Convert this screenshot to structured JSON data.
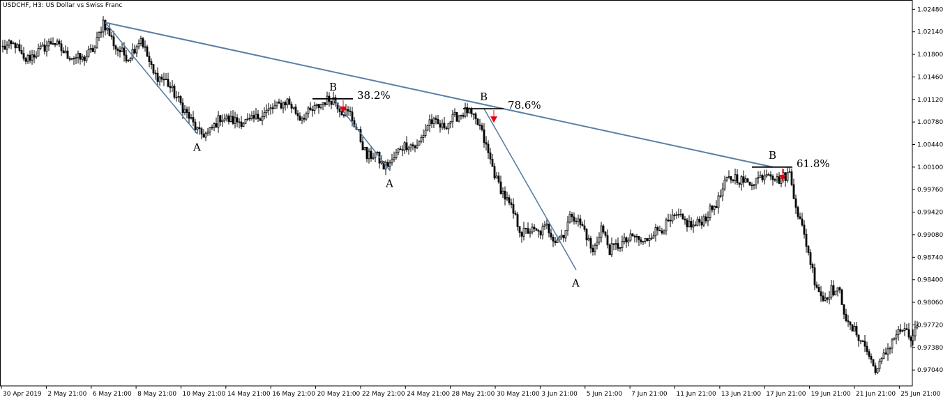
{
  "chart_data": {
    "type": "candlestick",
    "title": "USDCHF, H3:  US Dollar vs Swiss Franc",
    "ylim": [
      0.968,
      1.0262
    ],
    "y_ticks": [
      "1.02480",
      "1.02140",
      "1.01800",
      "1.01460",
      "1.01120",
      "1.00780",
      "1.00440",
      "1.00100",
      "0.99760",
      "0.99420",
      "0.99080",
      "0.98740",
      "0.98400",
      "0.98060",
      "0.97720",
      "0.97380",
      "0.97040"
    ],
    "x_ticks": [
      "30 Apr 2019",
      "2 May 21:00",
      "6 May 21:00",
      "8 May 21:00",
      "10 May 21:00",
      "14 May 21:00",
      "16 May 21:00",
      "20 May 21:00",
      "22 May 21:00",
      "24 May 21:00",
      "28 May 21:00",
      "30 May 21:00",
      "3 Jun 21:00",
      "5 Jun 21:00",
      "7 Jun 21:00",
      "11 Jun 21:00",
      "13 Jun 21:00",
      "17 Jun 21:00",
      "19 Jun 21:00",
      "21 Jun 21:00",
      "25 Jun 21:00"
    ],
    "grid": false,
    "close_anchors": [
      [
        0,
        1.019
      ],
      [
        6,
        1.0195
      ],
      [
        10,
        1.017
      ],
      [
        16,
        1.0182
      ],
      [
        24,
        1.02
      ],
      [
        30,
        1.018
      ],
      [
        38,
        1.0172
      ],
      [
        44,
        1.019
      ],
      [
        48,
        1.023
      ],
      [
        54,
        1.019
      ],
      [
        60,
        1.0175
      ],
      [
        66,
        1.0205
      ],
      [
        72,
        1.015
      ],
      [
        78,
        1.014
      ],
      [
        84,
        1.011
      ],
      [
        90,
        1.008
      ],
      [
        94,
        1.006
      ],
      [
        98,
        1.006
      ],
      [
        104,
        1.0085
      ],
      [
        110,
        1.008
      ],
      [
        118,
        1.0078
      ],
      [
        124,
        1.009
      ],
      [
        130,
        1.01
      ],
      [
        136,
        1.011
      ],
      [
        142,
        1.0085
      ],
      [
        148,
        1.0095
      ],
      [
        154,
        1.011
      ],
      [
        158,
        1.0113
      ],
      [
        162,
        1.0095
      ],
      [
        166,
        1.009
      ],
      [
        170,
        1.006
      ],
      [
        174,
        1.0025
      ],
      [
        178,
        1.003
      ],
      [
        182,
        1.001
      ],
      [
        186,
        1.0018
      ],
      [
        190,
        1.004
      ],
      [
        194,
        1.0045
      ],
      [
        198,
        1.004
      ],
      [
        204,
        1.008
      ],
      [
        210,
        1.007
      ],
      [
        216,
        1.0085
      ],
      [
        222,
        1.0095
      ],
      [
        228,
        1.007
      ],
      [
        232,
        1.003
      ],
      [
        236,
        0.999
      ],
      [
        240,
        0.9965
      ],
      [
        244,
        0.994
      ],
      [
        248,
        0.991
      ],
      [
        252,
        0.9915
      ],
      [
        256,
        0.991
      ],
      [
        260,
        0.992
      ],
      [
        264,
        0.99
      ],
      [
        268,
        0.991
      ],
      [
        272,
        0.994
      ],
      [
        278,
        0.9915
      ],
      [
        282,
        0.988
      ],
      [
        286,
        0.992
      ],
      [
        290,
        0.9885
      ],
      [
        296,
        0.9895
      ],
      [
        302,
        0.9905
      ],
      [
        306,
        0.9895
      ],
      [
        310,
        0.991
      ],
      [
        316,
        0.992
      ],
      [
        322,
        0.9935
      ],
      [
        330,
        0.992
      ],
      [
        336,
        0.9935
      ],
      [
        342,
        0.996
      ],
      [
        346,
        0.999
      ],
      [
        350,
        0.9995
      ],
      [
        356,
        0.9985
      ],
      [
        362,
        0.9995
      ],
      [
        366,
        1.0005
      ],
      [
        370,
        0.999
      ],
      [
        376,
        1.0
      ],
      [
        380,
        0.994
      ],
      [
        384,
        0.9895
      ],
      [
        388,
        0.984
      ],
      [
        392,
        0.981
      ],
      [
        396,
        0.9825
      ],
      [
        400,
        0.982
      ],
      [
        404,
        0.977
      ],
      [
        408,
        0.976
      ],
      [
        412,
        0.974
      ],
      [
        416,
        0.971
      ],
      [
        418,
        0.9705
      ],
      [
        422,
        0.973
      ],
      [
        426,
        0.9755
      ],
      [
        430,
        0.9765
      ],
      [
        434,
        0.975
      ],
      [
        437,
        0.977
      ]
    ],
    "annotations": [
      {
        "label": "A",
        "x_bar": 93,
        "y": 1.006
      },
      {
        "label": "B",
        "x_bar": 158,
        "y": 1.0113,
        "retracement": "38.2%",
        "level": 1.0113
      },
      {
        "label": "A",
        "x_bar": 185,
        "y": 1.0005
      },
      {
        "label": "B",
        "x_bar": 230,
        "y": 1.0098,
        "retracement": "78.6%",
        "level": 1.0098
      },
      {
        "label": "A",
        "x_bar": 274,
        "y": 0.9855
      },
      {
        "label": "B",
        "x_bar": 368,
        "y": 1.001,
        "retracement": "61.8%",
        "level": 1.001
      }
    ],
    "trendline": {
      "from": [
        49,
        1.0228
      ],
      "to": [
        368,
        1.001
      ]
    },
    "arrow_color": "#e8000b",
    "line_color": "#5a7fa6"
  }
}
